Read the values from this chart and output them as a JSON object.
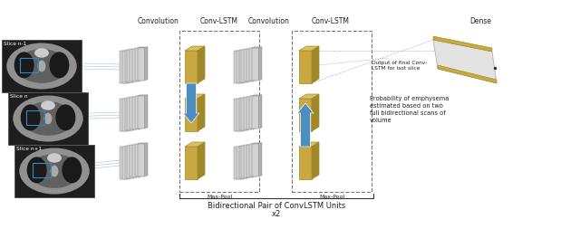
{
  "background_color": "#ffffff",
  "slice_labels": [
    "Slice n-1",
    "Slice n",
    "Slice n+1"
  ],
  "section_labels": [
    "Convolution",
    "Conv-LSTM",
    "Convolution",
    "Conv-LSTM",
    "Dense"
  ],
  "bottom_label": "Bidirectional Pair of ConvLSTM Units",
  "bottom_sub": "x2",
  "annotation1": "Output of final Conv-\nLSTM for last slice",
  "annotation2": "Probability of emphysema\nestimated based on two\nfull bidirectional scans of\nvolume",
  "maxpool_label": "Max-Pool",
  "gray_face": "#d2d2d2",
  "gray_edge": "#888888",
  "gold_face": "#c8a840",
  "gold_dark": "#a08828",
  "gold_top": "#ddc060",
  "gray_top": "#e8e8e8",
  "gray_side": "#b0b0b0",
  "blue_arrow_color": "#4a8fc0",
  "line_color": "#88aacc",
  "text_color": "#222222",
  "dashed_color": "#777777"
}
